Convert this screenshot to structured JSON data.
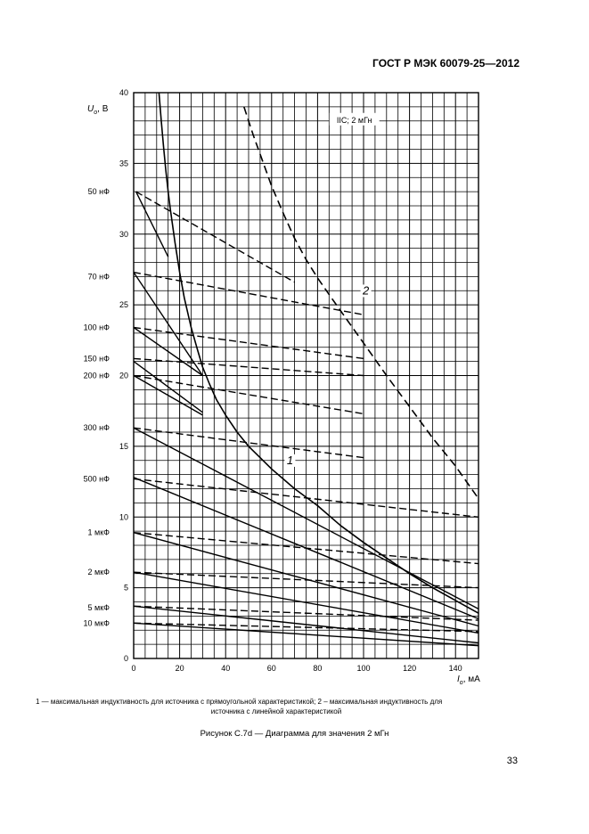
{
  "document": {
    "header": "ГОСТ Р МЭК 60079-25—2012",
    "legend_text_line1": "1 — максимальная индуктивность для источника с прямоугольной характеристикой; 2 – максимальная индуктивность для",
    "legend_text_line2": "источника с линейной характеристикой",
    "figure_caption": "Рисунок С.7d — Диаграмма для значения 2 мГн",
    "page_number": "33"
  },
  "chart_data": {
    "type": "line",
    "title": "IIC; 2 мГн",
    "ylabel_main": "U",
    "ylabel_sub": "o",
    "ylabel_unit": ", В",
    "xlabel_main": "I",
    "xlabel_sub": "o",
    "xlabel_unit": ", мА",
    "xlim": [
      0,
      150
    ],
    "ylim": [
      0,
      40
    ],
    "grid": true,
    "x_ticks": [
      "0",
      "20",
      "40",
      "60",
      "80",
      "100",
      "120",
      "140"
    ],
    "y_ticks": [
      "0",
      "5",
      "10",
      "15",
      "20",
      "25",
      "30",
      "35",
      "40"
    ],
    "capacitance_labels": [
      {
        "text": "50 нФ",
        "y": 33.0
      },
      {
        "text": "70 нФ",
        "y": 27.0
      },
      {
        "text": "100 нФ",
        "y": 23.4
      },
      {
        "text": "150 нФ",
        "y": 21.2
      },
      {
        "text": "200 нФ",
        "y": 20.0
      },
      {
        "text": "300 нФ",
        "y": 16.3
      },
      {
        "text": "500 нФ",
        "y": 12.7
      },
      {
        "text": "1 мкФ",
        "y": 8.9
      },
      {
        "text": "2 мкФ",
        "y": 6.1
      },
      {
        "text": "5 мкФ",
        "y": 3.6
      },
      {
        "text": "10 мкФ",
        "y": 2.5
      }
    ],
    "curve_labels": [
      {
        "text": "1",
        "x": 68,
        "y": 13.8
      },
      {
        "text": "2",
        "x": 101,
        "y": 25.8
      }
    ],
    "series": [
      {
        "id": "curve1",
        "style": "solid-thick",
        "x": [
          11,
          12,
          13,
          14,
          15,
          16,
          18,
          20,
          22,
          25,
          28,
          30,
          33,
          36,
          40,
          45,
          50,
          55,
          60,
          65,
          70,
          80,
          90,
          100,
          110,
          120,
          130,
          140,
          150
        ],
        "y": [
          40,
          38,
          36.2,
          34.5,
          33,
          31.7,
          29.4,
          27.3,
          25.5,
          23.4,
          21.7,
          20.6,
          19.4,
          18.3,
          17.2,
          16.0,
          15.0,
          14.2,
          13.4,
          12.7,
          12.0,
          10.8,
          9.4,
          8.2,
          7.1,
          6.0,
          5.0,
          4.1,
          3.2
        ]
      },
      {
        "id": "curve2",
        "style": "dashed-thick",
        "x": [
          48,
          52,
          56,
          60,
          65,
          70,
          75,
          80,
          86,
          93,
          100,
          110,
          120,
          130,
          140,
          150
        ],
        "y": [
          39.0,
          37.0,
          35.2,
          33.4,
          31.5,
          29.7,
          28.2,
          26.9,
          25.5,
          23.9,
          22.3,
          20.0,
          17.8,
          15.6,
          13.6,
          11.3
        ]
      },
      {
        "id": "r50",
        "style": "solid",
        "x": [
          1,
          15
        ],
        "y": [
          33.0,
          28.4
        ]
      },
      {
        "id": "r70",
        "style": "solid",
        "x": [
          0,
          30
        ],
        "y": [
          27.3,
          20.0
        ]
      },
      {
        "id": "r100",
        "style": "solid",
        "x": [
          0,
          30
        ],
        "y": [
          23.4,
          20.0
        ]
      },
      {
        "id": "r150",
        "style": "solid",
        "x": [
          0,
          30
        ],
        "y": [
          21.0,
          17.4
        ]
      },
      {
        "id": "r200",
        "style": "solid",
        "x": [
          0,
          30
        ],
        "y": [
          20.0,
          17.2
        ]
      },
      {
        "id": "r300",
        "style": "solid",
        "x": [
          0,
          150
        ],
        "y": [
          16.3,
          3.5
        ]
      },
      {
        "id": "r500",
        "style": "solid",
        "x": [
          0,
          150
        ],
        "y": [
          12.8,
          2.8
        ]
      },
      {
        "id": "r1u",
        "style": "solid",
        "x": [
          0,
          150
        ],
        "y": [
          8.9,
          2.3
        ]
      },
      {
        "id": "r2u",
        "style": "solid",
        "x": [
          0,
          150
        ],
        "y": [
          6.1,
          1.8
        ]
      },
      {
        "id": "r5u",
        "style": "solid",
        "x": [
          0,
          150
        ],
        "y": [
          3.7,
          1.1
        ]
      },
      {
        "id": "r10u",
        "style": "solid",
        "x": [
          0,
          150
        ],
        "y": [
          2.5,
          0.9
        ]
      },
      {
        "id": "l50",
        "style": "dashed",
        "x": [
          1,
          70
        ],
        "y": [
          33.0,
          26.6
        ]
      },
      {
        "id": "l70",
        "style": "dashed",
        "x": [
          0,
          100
        ],
        "y": [
          27.3,
          24.3
        ]
      },
      {
        "id": "l100",
        "style": "dashed",
        "x": [
          0,
          100
        ],
        "y": [
          23.4,
          21.2
        ]
      },
      {
        "id": "l150",
        "style": "dashed",
        "x": [
          0,
          100
        ],
        "y": [
          21.2,
          20.0
        ]
      },
      {
        "id": "l200",
        "style": "dashed",
        "x": [
          0,
          100
        ],
        "y": [
          20.0,
          17.3
        ]
      },
      {
        "id": "l300",
        "style": "dashed",
        "x": [
          0,
          100
        ],
        "y": [
          16.3,
          14.2
        ]
      },
      {
        "id": "l500",
        "style": "dashed",
        "x": [
          0,
          150
        ],
        "y": [
          12.7,
          10.0
        ]
      },
      {
        "id": "l1u",
        "style": "dashed",
        "x": [
          0,
          150
        ],
        "y": [
          8.9,
          6.7
        ]
      },
      {
        "id": "l2u",
        "style": "dashed",
        "x": [
          0,
          150
        ],
        "y": [
          6.1,
          5.0
        ]
      },
      {
        "id": "l5u",
        "style": "dashed",
        "x": [
          0,
          150
        ],
        "y": [
          3.7,
          2.7
        ]
      },
      {
        "id": "l10u",
        "style": "dashed",
        "x": [
          0,
          150
        ],
        "y": [
          2.5,
          1.9
        ]
      }
    ]
  }
}
